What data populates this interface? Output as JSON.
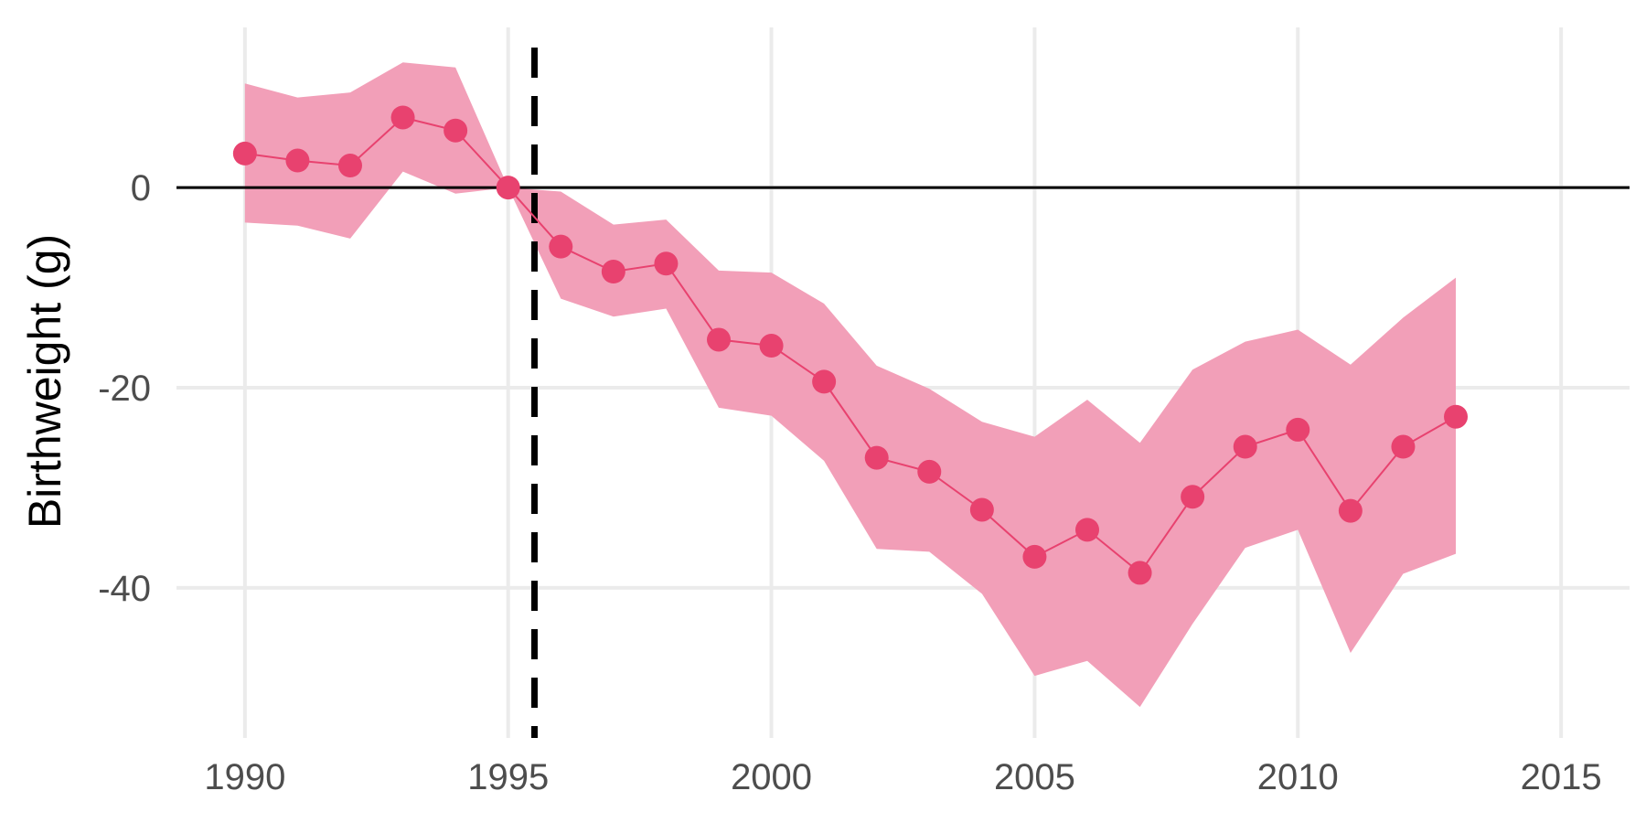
{
  "chart_data": {
    "type": "line",
    "title": "",
    "xlabel": "",
    "ylabel": "Birthweight (g)",
    "xlim": [
      1988.7,
      2016.3
    ],
    "ylim": [
      -55,
      16
    ],
    "x_ticks": [
      1990,
      1995,
      2000,
      2005,
      2010,
      2015
    ],
    "y_ticks": [
      0,
      -20,
      -40
    ],
    "grid": true,
    "legend": "none",
    "reference_lines": {
      "horizontal_y": 0,
      "vertical_x_dashed": 1995.5
    },
    "series": [
      {
        "x": [
          1990,
          1991,
          1992,
          1993,
          1994,
          1995,
          1996,
          1997,
          1998,
          1999,
          2000,
          2001,
          2002,
          2003,
          2004,
          2005,
          2006,
          2007,
          2008,
          2009,
          2010,
          2011,
          2012,
          2013
        ],
        "values": [
          3.4,
          2.7,
          2.2,
          7.0,
          5.7,
          0.0,
          -5.9,
          -8.4,
          -7.6,
          -15.2,
          -15.8,
          -19.4,
          -27.0,
          -28.4,
          -32.2,
          -36.9,
          -34.2,
          -38.5,
          -30.9,
          -25.9,
          -24.2,
          -32.3,
          -25.9,
          -22.9
        ],
        "ci_low": [
          -3.5,
          -3.8,
          -5.1,
          1.6,
          -0.6,
          0.0,
          -11.1,
          -12.9,
          -12.1,
          -22.0,
          -22.8,
          -27.3,
          -36.1,
          -36.4,
          -40.6,
          -48.8,
          -47.3,
          -51.9,
          -43.6,
          -36.0,
          -34.2,
          -46.5,
          -38.6,
          -36.6
        ],
        "ci_high": [
          10.4,
          9.0,
          9.5,
          12.5,
          12.0,
          0.0,
          -0.4,
          -3.7,
          -3.2,
          -8.3,
          -8.5,
          -11.6,
          -17.8,
          -20.1,
          -23.4,
          -24.9,
          -21.2,
          -25.5,
          -18.2,
          -15.4,
          -14.2,
          -17.7,
          -13.0,
          -9.0
        ]
      }
    ]
  },
  "colors": {
    "series": "#e8426f",
    "ribbon": "#f29fb8",
    "grid": "#ebebeb",
    "zero_line": "#000000",
    "dashed_line": "#000000",
    "tick_text": "#4d4d4d"
  }
}
